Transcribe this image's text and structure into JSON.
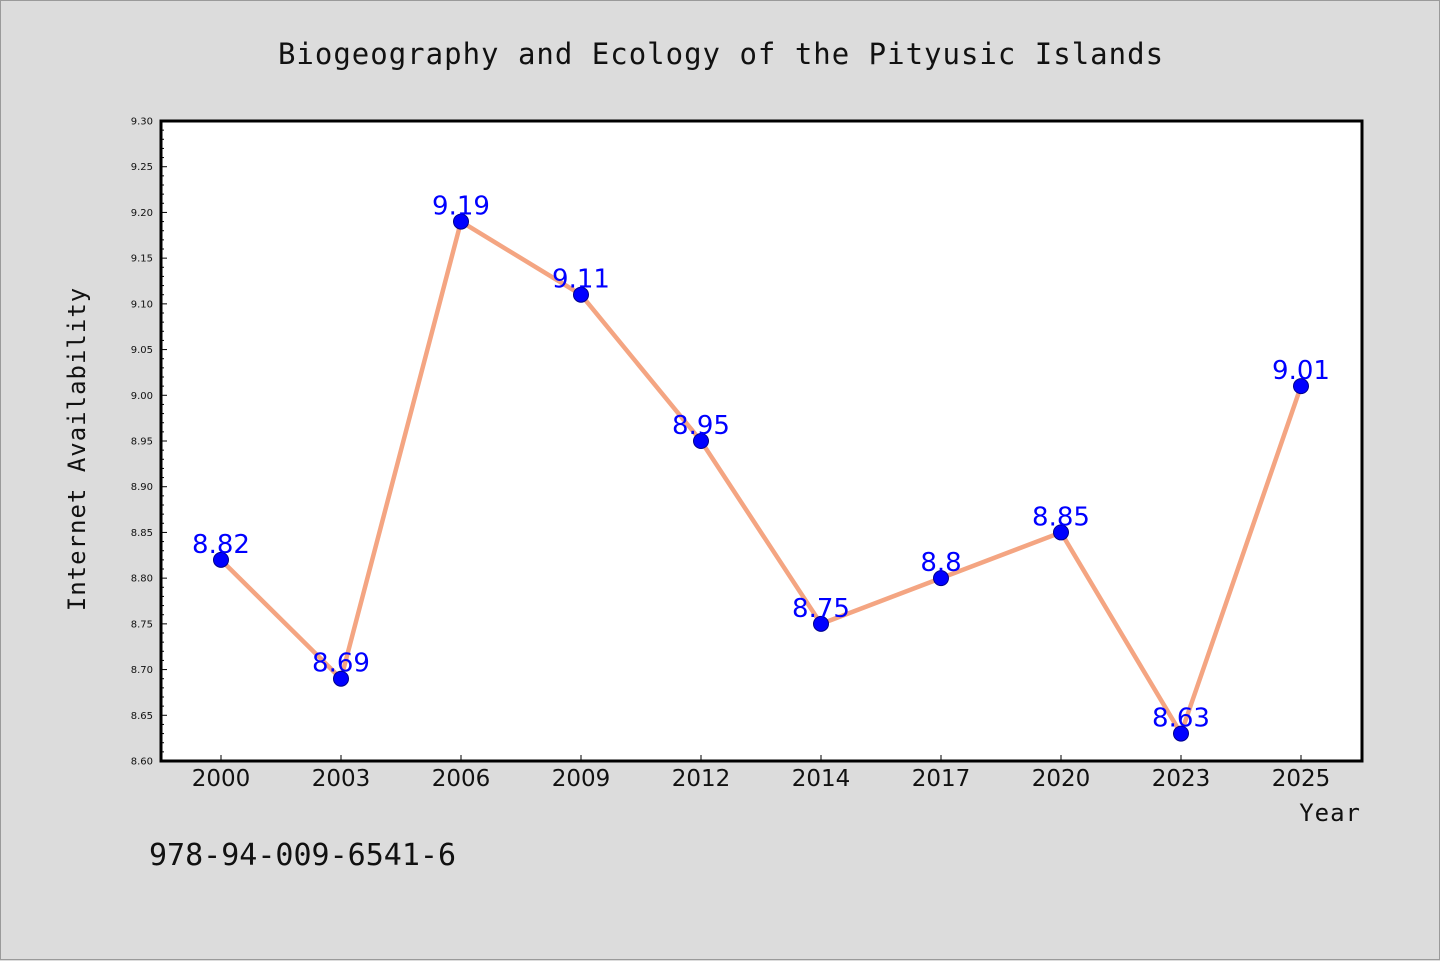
{
  "chart_data": {
    "type": "line",
    "title": "Biogeography and Ecology of the Pityusic Islands",
    "xlabel": "Year",
    "ylabel": "Internet Availability",
    "categories": [
      "2000",
      "2003",
      "2006",
      "2009",
      "2012",
      "2014",
      "2017",
      "2020",
      "2023",
      "2025"
    ],
    "series": [
      {
        "values": [
          8.82,
          8.69,
          9.19,
          9.11,
          8.95,
          8.75,
          8.8,
          8.85,
          8.63,
          9.01
        ],
        "labels": [
          "8.82",
          "8.69",
          "9.19",
          "9.11",
          "8.95",
          "8.75",
          "8.8",
          "8.85",
          "8.63",
          "9.01"
        ],
        "line_color": "#f4a582",
        "marker_color": "#0000ff"
      }
    ],
    "ylim": [
      8.6,
      9.3
    ],
    "yticks": [
      "8.60",
      "8.65",
      "8.70",
      "8.75",
      "8.80",
      "8.85",
      "8.90",
      "8.95",
      "9.00",
      "9.05",
      "9.10",
      "9.15",
      "9.20",
      "9.25",
      "9.30"
    ],
    "grid": false,
    "legend": "none"
  },
  "footer": {
    "isbn": "978-94-009-6541-6"
  },
  "colors": {
    "background": "#dcdcdc",
    "plot_background": "#ffffff",
    "data_label": "#0000ff"
  }
}
